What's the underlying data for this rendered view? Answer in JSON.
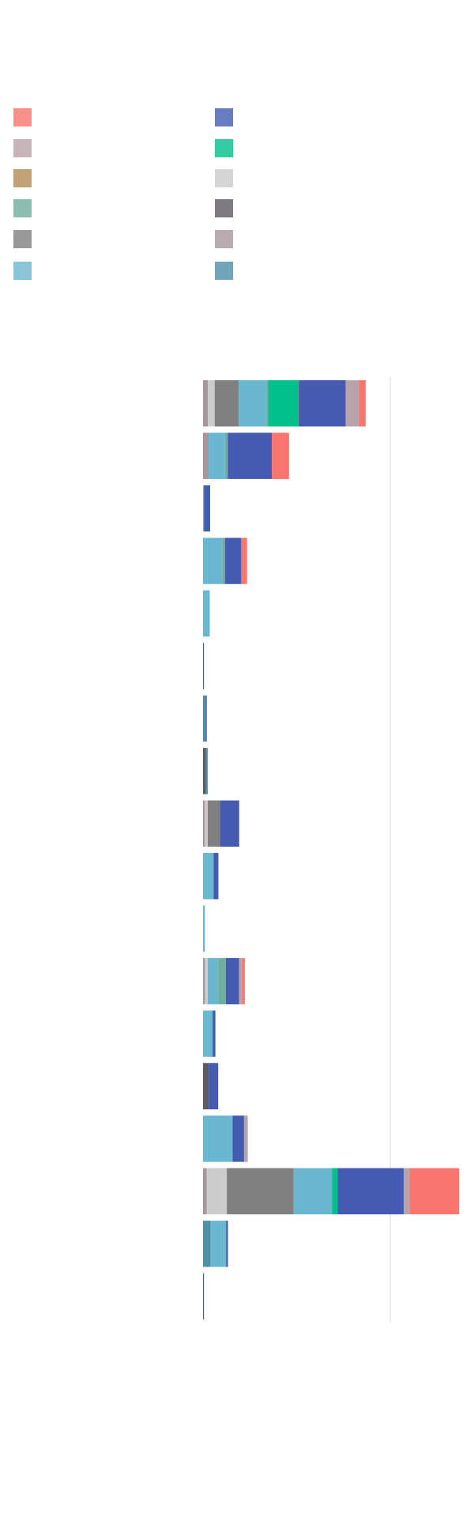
{
  "chart_data": {
    "type": "stacked-bar-horizontal",
    "categories": [
      null,
      null,
      null,
      null,
      null,
      null,
      null,
      null,
      null,
      null,
      null,
      null,
      null,
      null,
      null,
      null,
      null,
      null
    ],
    "series": [
      {
        "color": "#a8979a",
        "values": [
          2.6,
          3,
          0,
          0,
          0,
          0,
          0,
          0,
          1,
          0,
          0,
          1,
          0,
          0,
          0,
          2,
          0,
          0
        ]
      },
      {
        "color": "#5e5a60",
        "values": [
          0,
          0,
          0,
          0,
          0,
          0,
          0,
          1.5,
          0,
          0,
          0,
          0,
          0,
          3,
          0,
          0,
          0,
          0
        ]
      },
      {
        "color": "#4f8fa8",
        "values": [
          0,
          0,
          0,
          0,
          0,
          0,
          1.5,
          1,
          0,
          0,
          0,
          0,
          0,
          0,
          0,
          0,
          4.1,
          0
        ]
      },
      {
        "color": "#cccccc",
        "values": [
          3.6,
          0,
          0,
          0,
          0,
          0,
          0,
          0,
          1.5,
          0,
          0,
          1.5,
          0,
          0,
          0,
          10.7,
          0,
          0
        ]
      },
      {
        "color": "#808080",
        "values": [
          12.8,
          0,
          0,
          0,
          0,
          0,
          0,
          0,
          6.6,
          0,
          0,
          0,
          0,
          0,
          0,
          35.7,
          0,
          0
        ]
      },
      {
        "color": "#6ab7d1",
        "values": [
          14.8,
          8.7,
          0.5,
          10.2,
          3.6,
          0,
          0,
          0,
          0,
          5.6,
          1,
          5.6,
          5.1,
          0,
          15.8,
          20.4,
          8.2,
          0
        ]
      },
      {
        "color": "#6fae9c",
        "values": [
          1,
          1.5,
          0,
          1.5,
          0,
          0,
          0,
          0,
          0,
          0,
          0,
          4.1,
          0,
          0,
          0,
          0,
          0,
          0
        ]
      },
      {
        "color": "#b38a55",
        "values": [
          0,
          0,
          0,
          0,
          0,
          0,
          0,
          0,
          0,
          0,
          0,
          0,
          0,
          0,
          0,
          0,
          0,
          0
        ]
      },
      {
        "color": "#00c08b",
        "values": [
          16.3,
          0,
          0,
          0,
          0,
          0,
          0,
          0,
          0,
          0,
          0,
          0,
          0,
          0,
          0,
          3.1,
          0,
          0
        ]
      },
      {
        "color": "#445bb0",
        "values": [
          25,
          23.5,
          3.3,
          8.7,
          0,
          0.5,
          0.5,
          0,
          10.2,
          2.6,
          0,
          7.1,
          1.5,
          5.1,
          6.1,
          35.2,
          1,
          0.5
        ]
      },
      {
        "color": "#b8a4a8",
        "values": [
          7.1,
          0,
          0,
          0,
          0,
          0,
          0,
          0,
          0,
          0,
          0,
          1.5,
          0,
          0,
          2,
          3.1,
          0,
          0
        ]
      },
      {
        "color": "#f8766d",
        "values": [
          3.6,
          9.2,
          0,
          3.1,
          0,
          0,
          0,
          0,
          0,
          0,
          0,
          1.5,
          0,
          0,
          0,
          26.5,
          0,
          0
        ]
      }
    ],
    "xlim": [
      0,
      140
    ],
    "xticks": [
      100
    ],
    "grid": true
  }
}
